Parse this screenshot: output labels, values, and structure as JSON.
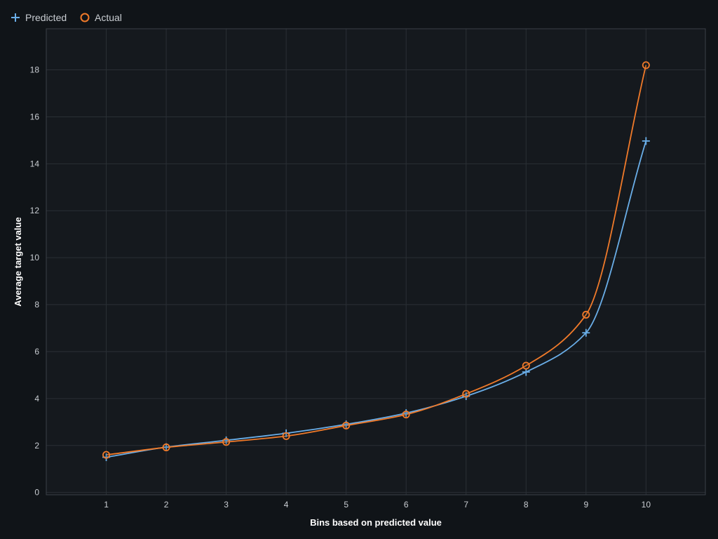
{
  "colors": {
    "background": "#101418",
    "plot_background": "#15191e",
    "grid": "#2a2f35",
    "axis": "#3a4047",
    "predicted": "#6aaee8",
    "actual": "#f07a2a",
    "tick_text": "#c9cdd2",
    "title_text": "#ffffff"
  },
  "legend": {
    "items": [
      {
        "label": "Predicted",
        "marker": "plus-icon",
        "color": "#6aaee8"
      },
      {
        "label": "Actual",
        "marker": "circle-icon",
        "color": "#f07a2a"
      }
    ],
    "placement": "top-left"
  },
  "chart_data": {
    "type": "line",
    "title": "",
    "xlabel": "Bins based on predicted value",
    "ylabel": "Average target value",
    "x": [
      1,
      2,
      3,
      4,
      5,
      6,
      7,
      8,
      9,
      10
    ],
    "xlim": [
      0.0,
      10.99
    ],
    "ylim": [
      -0.1,
      19.75
    ],
    "xticks": [
      1,
      2,
      3,
      4,
      5,
      6,
      7,
      8,
      9,
      10
    ],
    "yticks": [
      0,
      2,
      4,
      6,
      8,
      10,
      12,
      14,
      16,
      18
    ],
    "grid": true,
    "series": [
      {
        "name": "Predicted",
        "marker": "plus",
        "color": "#6aaee8",
        "values": [
          1.5,
          1.93,
          2.22,
          2.52,
          2.9,
          3.38,
          4.1,
          5.13,
          6.8,
          14.97
        ]
      },
      {
        "name": "Actual",
        "marker": "circle",
        "color": "#f07a2a",
        "values": [
          1.6,
          1.92,
          2.15,
          2.4,
          2.85,
          3.32,
          4.2,
          5.4,
          7.57,
          18.2
        ]
      }
    ]
  }
}
